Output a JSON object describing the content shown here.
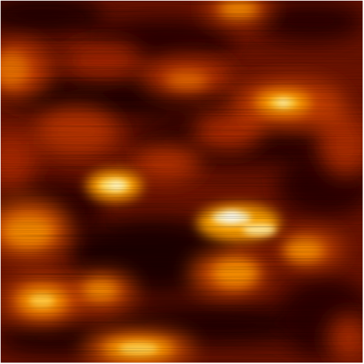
{
  "image": {
    "kind": "scanning-probe-micrograph",
    "colormap": "afmhot",
    "colors": {
      "background": "#5a0d00",
      "dark": "#1a0000",
      "mid": "#b52d00",
      "bright": "#ff9a00",
      "peak": "#ffffff"
    }
  }
}
